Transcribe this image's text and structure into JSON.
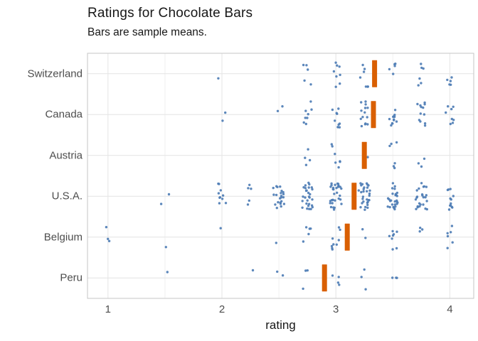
{
  "figure": {
    "title": "Ratings for Chocolate Bars",
    "subtitle": "Bars are sample means.",
    "x_axis_label": "rating"
  },
  "colors": {
    "point": "#4e7db5",
    "mean_bar": "#d95f02",
    "grid_major": "#e4e4e4",
    "grid_minor": "#f0f0f0",
    "panel_border": "#c6c6c6",
    "panel_bg": "#ffffff",
    "title_text": "#171717",
    "axis_text": "#4d4d4d"
  },
  "chart_data": {
    "type": "scatter",
    "subtype": "jittered-strip-plot-with-mean-bars",
    "title": "Ratings for Chocolate Bars",
    "subtitle": "Bars are sample means.",
    "xlabel": "rating",
    "ylabel": "",
    "x_domain": [
      0.82,
      4.21
    ],
    "x_ticks": [
      1,
      2,
      3,
      4
    ],
    "x_minor_ticks": [
      1.5,
      2.5,
      3.5
    ],
    "grid": true,
    "categories": [
      "Switzerland",
      "Canada",
      "Austria",
      "U.S.A.",
      "Belgium",
      "Peru"
    ],
    "means": [
      3.34,
      3.33,
      3.25,
      3.16,
      3.1,
      2.9
    ],
    "series": [
      {
        "name": "Switzerland",
        "clusters": [
          {
            "rating": 2.0,
            "count": 1
          },
          {
            "rating": 2.75,
            "count": 5
          },
          {
            "rating": 3.0,
            "count": 8
          },
          {
            "rating": 3.25,
            "count": 7
          },
          {
            "rating": 3.5,
            "count": 5
          },
          {
            "rating": 3.75,
            "count": 6
          },
          {
            "rating": 4.0,
            "count": 5
          }
        ]
      },
      {
        "name": "Canada",
        "clusters": [
          {
            "rating": 2.0,
            "count": 2
          },
          {
            "rating": 2.5,
            "count": 2
          },
          {
            "rating": 2.75,
            "count": 8
          },
          {
            "rating": 3.0,
            "count": 10
          },
          {
            "rating": 3.25,
            "count": 14
          },
          {
            "rating": 3.5,
            "count": 12
          },
          {
            "rating": 3.75,
            "count": 12
          },
          {
            "rating": 4.0,
            "count": 8
          }
        ]
      },
      {
        "name": "Austria",
        "clusters": [
          {
            "rating": 2.75,
            "count": 4
          },
          {
            "rating": 3.0,
            "count": 7
          },
          {
            "rating": 3.25,
            "count": 3
          },
          {
            "rating": 3.5,
            "count": 6
          },
          {
            "rating": 3.75,
            "count": 3
          }
        ]
      },
      {
        "name": "U.S.A.",
        "clusters": [
          {
            "rating": 1.5,
            "count": 2
          },
          {
            "rating": 2.0,
            "count": 10
          },
          {
            "rating": 2.25,
            "count": 5
          },
          {
            "rating": 2.5,
            "count": 22
          },
          {
            "rating": 2.75,
            "count": 28
          },
          {
            "rating": 3.0,
            "count": 32
          },
          {
            "rating": 3.25,
            "count": 30
          },
          {
            "rating": 3.5,
            "count": 28
          },
          {
            "rating": 3.75,
            "count": 24
          },
          {
            "rating": 4.0,
            "count": 12
          }
        ]
      },
      {
        "name": "Belgium",
        "clusters": [
          {
            "rating": 1.0,
            "count": 3
          },
          {
            "rating": 1.5,
            "count": 1
          },
          {
            "rating": 2.0,
            "count": 1
          },
          {
            "rating": 2.5,
            "count": 1
          },
          {
            "rating": 2.75,
            "count": 5
          },
          {
            "rating": 3.0,
            "count": 9
          },
          {
            "rating": 3.25,
            "count": 2
          },
          {
            "rating": 3.5,
            "count": 8
          },
          {
            "rating": 3.75,
            "count": 3
          },
          {
            "rating": 4.0,
            "count": 6
          }
        ]
      },
      {
        "name": "Peru",
        "clusters": [
          {
            "rating": 1.5,
            "count": 1
          },
          {
            "rating": 2.25,
            "count": 1
          },
          {
            "rating": 2.5,
            "count": 2
          },
          {
            "rating": 2.75,
            "count": 3
          },
          {
            "rating": 3.0,
            "count": 4
          },
          {
            "rating": 3.25,
            "count": 3
          },
          {
            "rating": 3.5,
            "count": 3
          }
        ]
      }
    ]
  }
}
